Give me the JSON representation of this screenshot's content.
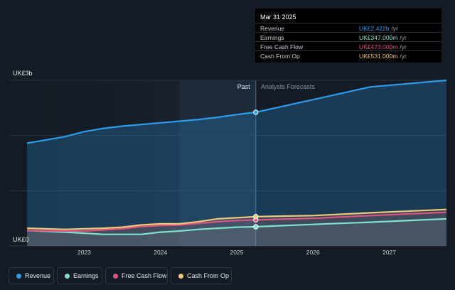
{
  "colors": {
    "background": "#151b24",
    "revenue": "#2d9cec",
    "earnings": "#7ee2cc",
    "free_cash_flow": "#e0527f",
    "cash_from_op": "#f0c877"
  },
  "tooltip": {
    "date": "Mar 31 2025",
    "rows": [
      {
        "label": "Revenue",
        "value": "UK£2.422b",
        "unit": "/yr",
        "color": "#2d9cec"
      },
      {
        "label": "Earnings",
        "value": "UK£347.000m",
        "unit": "/yr",
        "color": "#7ee2cc"
      },
      {
        "label": "Free Cash Flow",
        "value": "UK£473.000m",
        "unit": "/yr",
        "color": "#e0527f"
      },
      {
        "label": "Cash From Op",
        "value": "UK£531.000m",
        "unit": "/yr",
        "color": "#f0c877"
      }
    ]
  },
  "legend": [
    {
      "label": "Revenue",
      "icon": "revenue-dot",
      "color": "#2d9cec"
    },
    {
      "label": "Earnings",
      "icon": "earnings-dot",
      "color": "#7ee2cc"
    },
    {
      "label": "Free Cash Flow",
      "icon": "free-cash-flow-dot",
      "color": "#e0527f"
    },
    {
      "label": "Cash From Op",
      "icon": "cash-from-op-dot",
      "color": "#f0c877"
    }
  ],
  "chart_data": {
    "type": "line",
    "y_unit": "UK£ billions",
    "ylim": [
      0,
      3
    ],
    "xlim": [
      2022.25,
      2027.75
    ],
    "ytick_labels": [
      {
        "value": 3,
        "label": "UK£3b"
      },
      {
        "value": 0,
        "label": "UK£0"
      }
    ],
    "xticks": [
      2023,
      2024,
      2025,
      2026,
      2027
    ],
    "xtick_labels": [
      "2023",
      "2024",
      "2025",
      "2026",
      "2027"
    ],
    "grid": true,
    "divider_x": 2025.25,
    "highlight_band": [
      2024.25,
      2025.25
    ],
    "past_label": "Past",
    "forecast_label": "Analysts Forecasts",
    "series": [
      {
        "name": "Revenue",
        "color": "#2d9cec",
        "x": [
          2022.25,
          2022.75,
          2023.0,
          2023.25,
          2023.5,
          2023.75,
          2024.0,
          2024.25,
          2024.5,
          2024.75,
          2025.0,
          2025.25,
          2026.0,
          2026.75,
          2027.75
        ],
        "y": [
          1.86,
          1.98,
          2.07,
          2.13,
          2.17,
          2.2,
          2.23,
          2.26,
          2.29,
          2.33,
          2.38,
          2.422,
          2.65,
          2.88,
          3.0
        ]
      },
      {
        "name": "Earnings",
        "color": "#7ee2cc",
        "x": [
          2022.25,
          2022.75,
          2023.0,
          2023.25,
          2023.5,
          2023.75,
          2024.0,
          2024.25,
          2024.5,
          2024.75,
          2025.0,
          2025.25,
          2026.0,
          2026.75,
          2027.75
        ],
        "y": [
          0.28,
          0.25,
          0.23,
          0.21,
          0.21,
          0.21,
          0.25,
          0.27,
          0.3,
          0.32,
          0.34,
          0.347,
          0.39,
          0.43,
          0.49
        ]
      },
      {
        "name": "Free Cash Flow",
        "color": "#e0527f",
        "x": [
          2022.25,
          2022.75,
          2023.0,
          2023.25,
          2023.5,
          2023.75,
          2024.0,
          2024.25,
          2024.5,
          2024.75,
          2025.0,
          2025.25,
          2026.0,
          2026.75,
          2027.75
        ],
        "y": [
          0.28,
          0.27,
          0.27,
          0.29,
          0.31,
          0.35,
          0.37,
          0.38,
          0.41,
          0.44,
          0.46,
          0.473,
          0.5,
          0.55,
          0.61
        ]
      },
      {
        "name": "Cash From Op",
        "color": "#f0c877",
        "x": [
          2022.25,
          2022.75,
          2023.0,
          2023.25,
          2023.5,
          2023.75,
          2024.0,
          2024.25,
          2024.5,
          2024.75,
          2025.0,
          2025.25,
          2026.0,
          2026.75,
          2027.75
        ],
        "y": [
          0.32,
          0.3,
          0.31,
          0.32,
          0.34,
          0.38,
          0.4,
          0.4,
          0.44,
          0.49,
          0.51,
          0.531,
          0.55,
          0.6,
          0.66
        ]
      }
    ]
  }
}
